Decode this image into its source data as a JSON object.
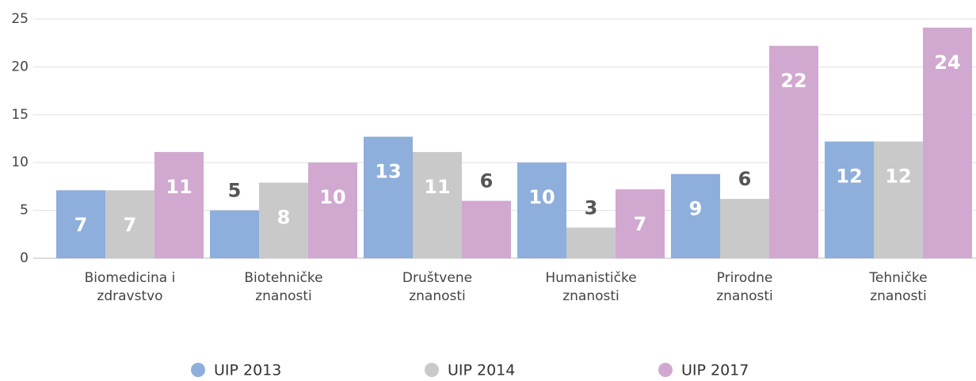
{
  "chart_data": {
    "type": "bar",
    "categories": [
      "Biomedicina i zdravstvo",
      "Biotehničke znanosti",
      "Društvene znanosti",
      "Humanističke znanosti",
      "Prirodne znanosti",
      "Tehničke znanosti"
    ],
    "series": [
      {
        "name": "UIP 2013",
        "color": "#8eaedb",
        "values": [
          7.1,
          5.0,
          12.7,
          10.0,
          8.8,
          12.2
        ],
        "value_labels": [
          "7",
          "5",
          "13",
          "10",
          "9",
          "12"
        ]
      },
      {
        "name": "UIP 2014",
        "color": "#c9c9c9",
        "values": [
          7.1,
          7.9,
          11.1,
          3.2,
          6.2,
          12.2
        ],
        "value_labels": [
          "7",
          "8",
          "11",
          "3",
          "6",
          "12"
        ]
      },
      {
        "name": "UIP 2017",
        "color": "#d1a8d0",
        "values": [
          11.1,
          10.0,
          6.0,
          7.2,
          22.2,
          24.1
        ],
        "value_labels": [
          "11",
          "10",
          "6",
          "7",
          "22",
          "24"
        ]
      }
    ],
    "ylim": [
      0,
      25
    ],
    "yticks": [
      0,
      5,
      10,
      15,
      20,
      25
    ],
    "grid": true,
    "legend": "bottom"
  }
}
